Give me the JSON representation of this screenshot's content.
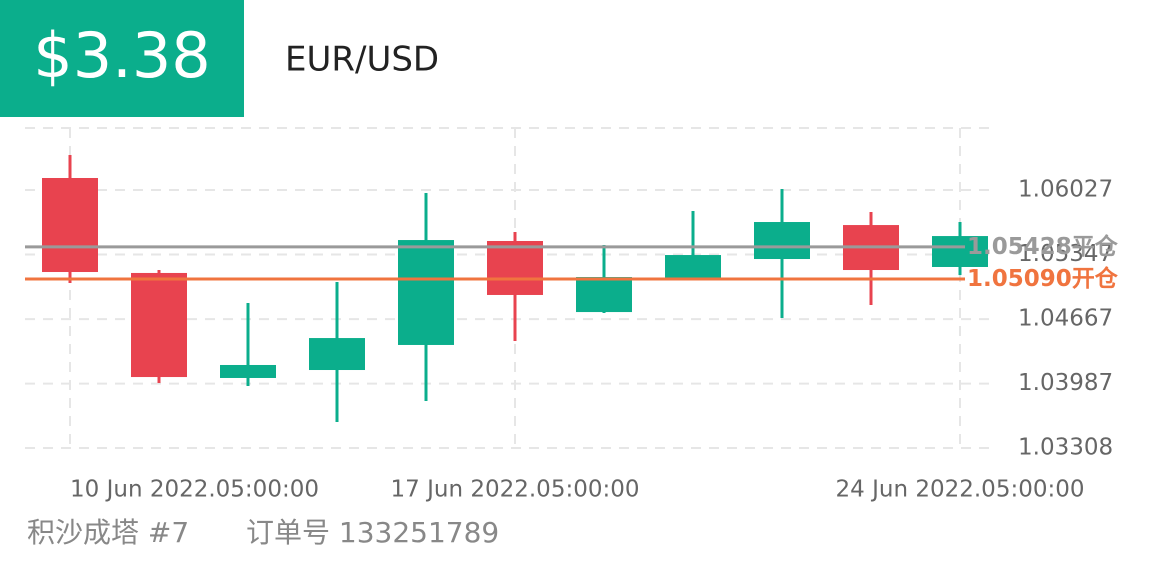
{
  "header": {
    "profit": "$3.38",
    "symbol": "EUR/USD"
  },
  "chart_data": {
    "type": "candlestick",
    "categories": [
      "10 Jun 2022.05:00:00",
      null,
      null,
      null,
      null,
      "17 Jun 2022.05:00:00",
      null,
      null,
      null,
      null,
      "24 Jun 2022.05:00:00"
    ],
    "open": [
      1.06154,
      1.05153,
      1.04046,
      1.0413,
      1.04394,
      1.0549,
      1.04741,
      1.05089,
      1.053,
      1.05658,
      1.05216
    ],
    "high": [
      1.06396,
      1.05184,
      1.04836,
      1.05058,
      1.05996,
      1.05585,
      1.05448,
      1.05806,
      1.06038,
      1.05795,
      1.0569
    ],
    "low": [
      1.05047,
      1.03993,
      1.03961,
      1.03582,
      1.03803,
      1.04436,
      1.04731,
      1.05089,
      1.04678,
      1.04815,
      1.05131
    ],
    "close": [
      1.05163,
      1.04056,
      1.04183,
      1.04467,
      1.055,
      1.04921,
      1.0511,
      1.05342,
      1.0569,
      1.05184,
      1.05542
    ],
    "up_color": "#0bae8c",
    "down_color": "#e8434f",
    "ylim": [
      1.03308,
      1.06681
    ],
    "yticks": [
      1.03308,
      1.03987,
      1.04667,
      1.05347,
      1.06027
    ],
    "grid": true,
    "reference_lines": [
      {
        "value": 1.05428,
        "value_label": "1.05428",
        "label": "平仓",
        "color": "#9a9a9a"
      },
      {
        "value": 1.0509,
        "value_label": "1.05090",
        "label": "开仓",
        "color": "#f0743f"
      }
    ]
  },
  "footer": {
    "strategy": "积沙成塔 #7",
    "order": "订单号 133251789"
  }
}
